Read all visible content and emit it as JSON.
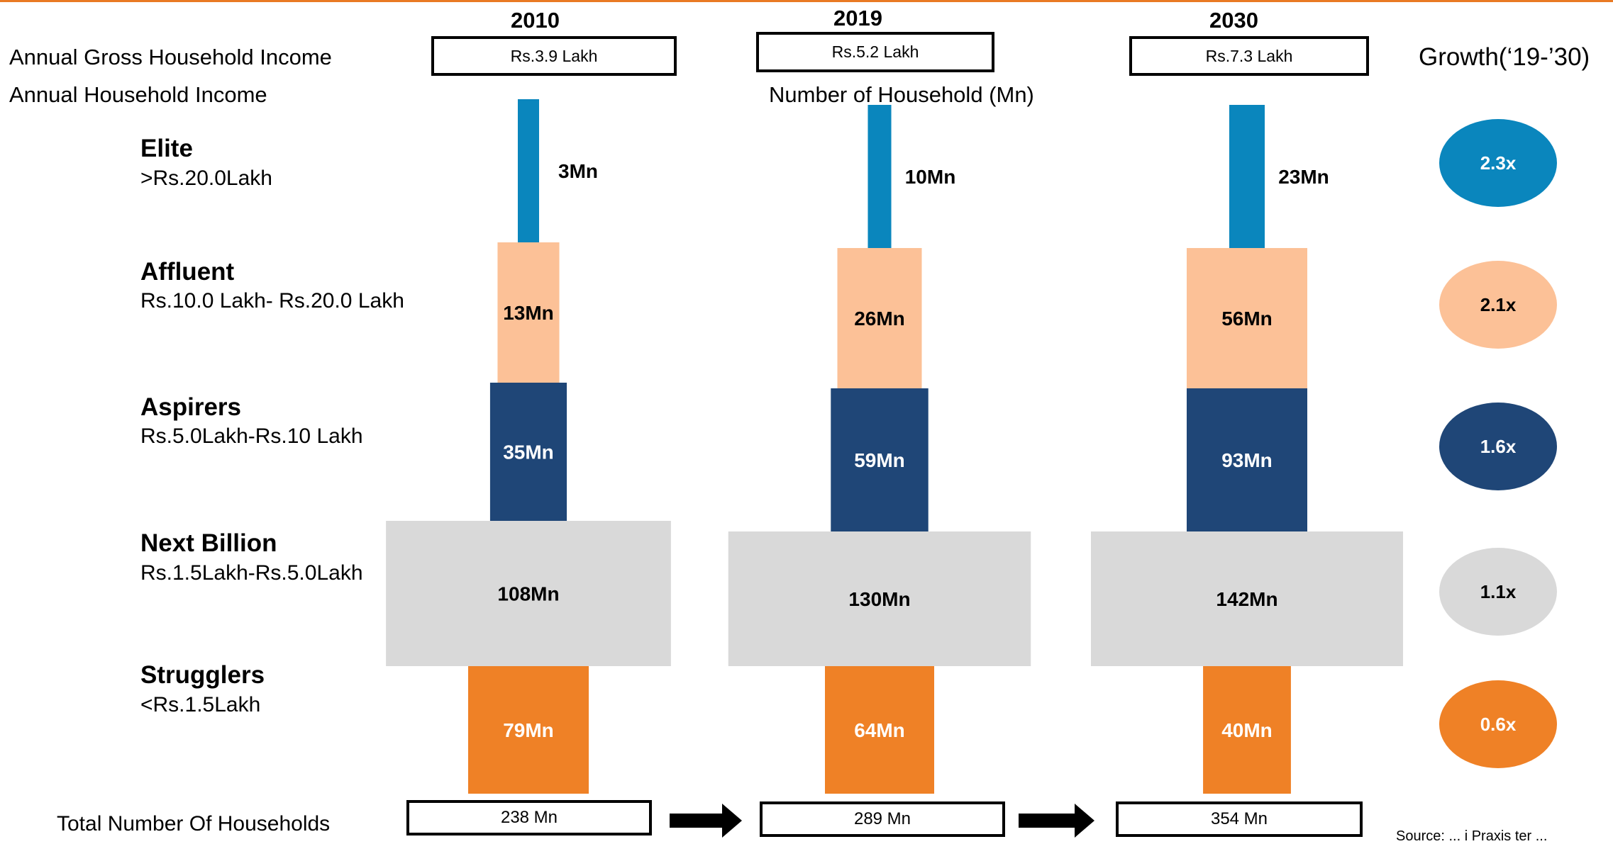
{
  "labels": {
    "gross_income": "Annual Gross Household Income",
    "household_income": "Annual Household Income",
    "num_households": "Number of Household (Mn)",
    "growth_title": "Growth(‘19-’30)",
    "total_households": "Total Number Of Households",
    "source_note": "Source: ... i Praxis ter ..."
  },
  "categories": [
    {
      "name": "Elite",
      "range": ">Rs.20.0Lakh"
    },
    {
      "name": "Affluent",
      "range": "Rs.10.0 Lakh- Rs.20.0 Lakh"
    },
    {
      "name": "Aspirers",
      "range": "Rs.5.0Lakh-Rs.10 Lakh"
    },
    {
      "name": "Next Billion",
      "range": "Rs.1.5Lakh-Rs.5.0Lakh"
    },
    {
      "name": "Strugglers",
      "range": "<Rs.1.5Lakh"
    }
  ],
  "colors": {
    "Elite": "#0a86bd",
    "Affluent": "#fcc197",
    "Aspirers": "#1f4677",
    "Next Billion": "#d9d9d9",
    "Strugglers": "#ef8126",
    "accent_line": "#e97a24"
  },
  "columns": [
    {
      "year": "2010",
      "gross_income": "Rs.3.9 Lakh",
      "total": "238 Mn"
    },
    {
      "year": "2019",
      "gross_income": "Rs.5.2 Lakh",
      "total": "289 Mn"
    },
    {
      "year": "2030",
      "gross_income": "Rs.7.3 Lakh",
      "total": "354 Mn"
    }
  ],
  "chart_data": {
    "type": "bar",
    "categories": [
      "2010",
      "2019",
      "2030"
    ],
    "unit": "Mn",
    "series": [
      {
        "name": "Elite",
        "values": [
          3,
          10,
          23
        ],
        "labels": [
          "3Mn",
          "10Mn",
          "23Mn"
        ]
      },
      {
        "name": "Affluent",
        "values": [
          13,
          26,
          56
        ],
        "labels": [
          "13Mn",
          "26Mn",
          "56Mn"
        ]
      },
      {
        "name": "Aspirers",
        "values": [
          35,
          59,
          93
        ],
        "labels": [
          "35Mn",
          "59Mn",
          "93Mn"
        ]
      },
      {
        "name": "Next Billion",
        "values": [
          108,
          130,
          142
        ],
        "labels": [
          "108Mn",
          "130Mn",
          "142Mn"
        ]
      },
      {
        "name": "Strugglers",
        "values": [
          79,
          64,
          40
        ],
        "labels": [
          "79Mn",
          "64Mn",
          "40Mn"
        ]
      }
    ],
    "growth": [
      {
        "name": "Elite",
        "label": "2.3x"
      },
      {
        "name": "Affluent",
        "label": "2.1x"
      },
      {
        "name": "Aspirers",
        "label": "1.6x"
      },
      {
        "name": "Next Billion",
        "label": "1.1x"
      },
      {
        "name": "Strugglers",
        "label": "0.6x"
      }
    ],
    "totals": [
      238,
      289,
      354
    ]
  }
}
